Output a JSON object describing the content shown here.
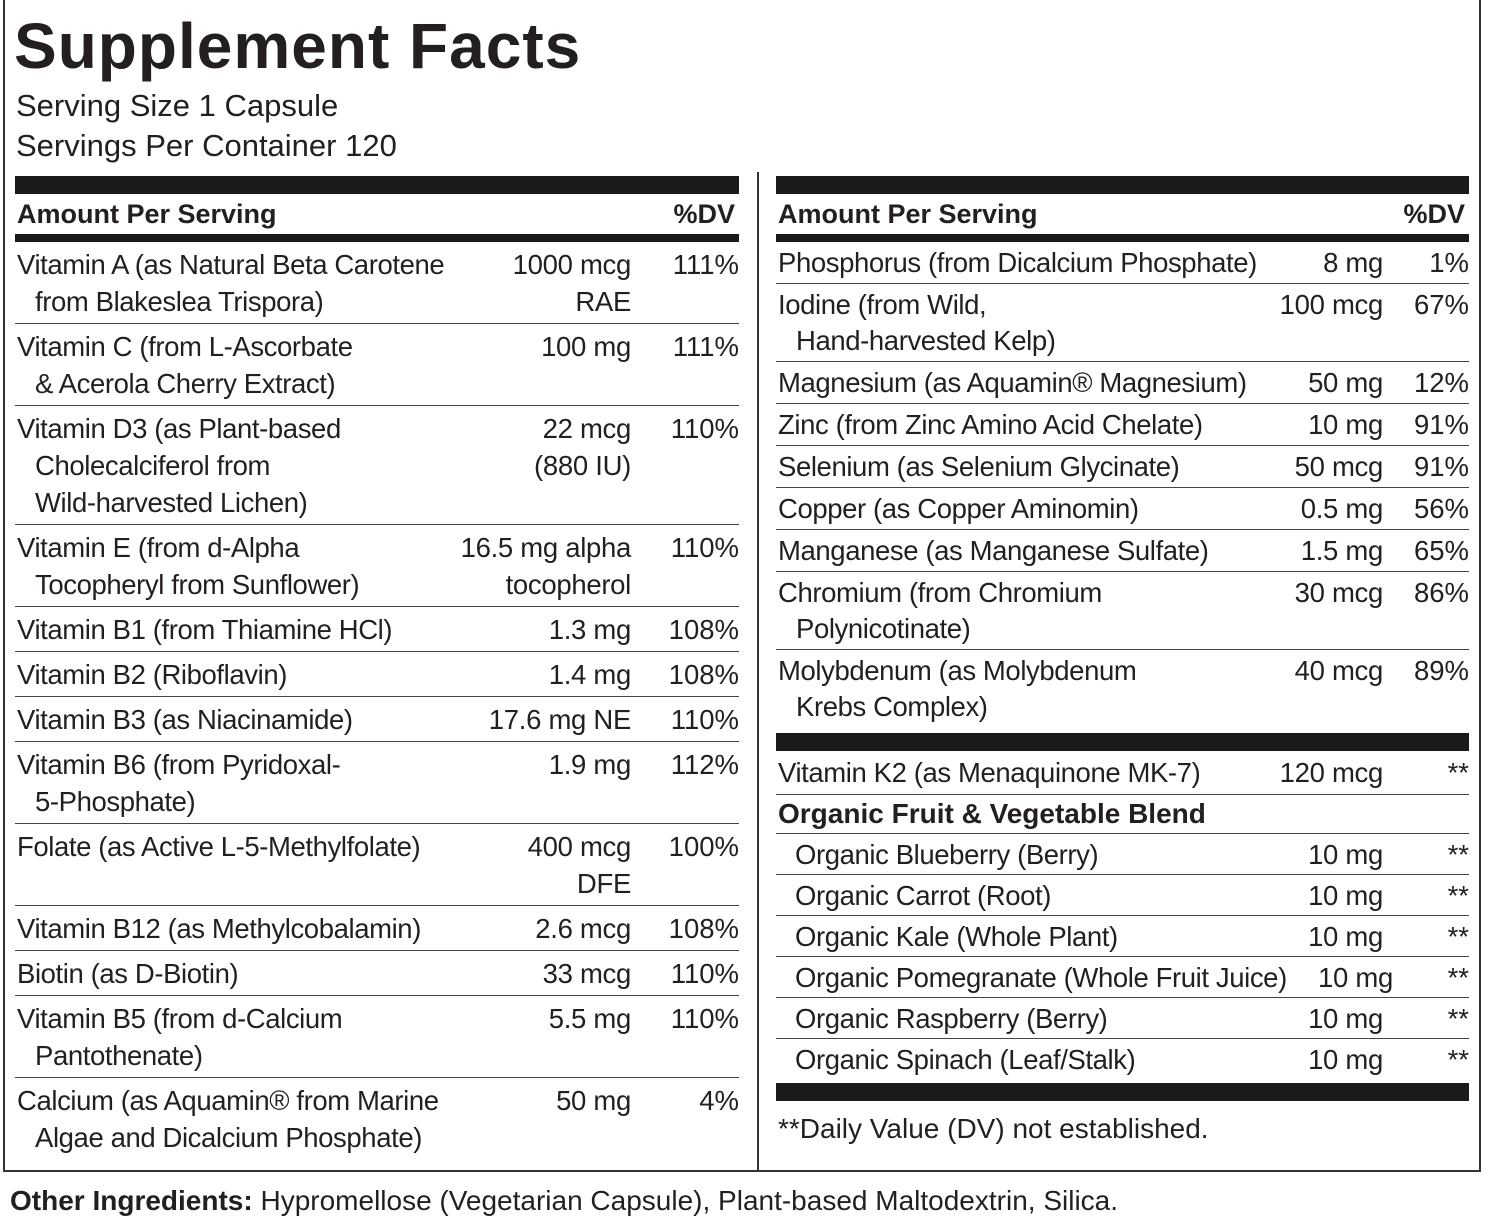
{
  "title": "Supplement Facts",
  "serving_info": [
    "Serving Size 1 Capsule",
    "Servings Per Container 120"
  ],
  "left_column": {
    "header": {
      "amount": "Amount Per Serving",
      "dv": "%DV"
    },
    "rows": [
      {
        "name": [
          "Vitamin A (as Natural Beta Carotene",
          "from Blakeslea Trispora)"
        ],
        "amount": [
          "1000 mcg",
          "RAE"
        ],
        "dv": "111%"
      },
      {
        "name": [
          "Vitamin C (from L-Ascorbate",
          "& Acerola Cherry Extract)"
        ],
        "amount": [
          "100 mg"
        ],
        "dv": "111%"
      },
      {
        "name": [
          "Vitamin D3 (as Plant-based",
          "Cholecalciferol from",
          "Wild-harvested Lichen)"
        ],
        "amount": [
          "22 mcg",
          "(880 IU)"
        ],
        "dv": "110%"
      },
      {
        "name": [
          "Vitamin E (from d-Alpha",
          "Tocopheryl from Sunflower)"
        ],
        "amount": [
          "16.5 mg alpha",
          "tocopherol"
        ],
        "dv": "110%"
      },
      {
        "name": [
          "Vitamin B1 (from Thiamine HCl)"
        ],
        "amount": [
          "1.3 mg"
        ],
        "dv": "108%"
      },
      {
        "name": [
          "Vitamin B2 (Riboflavin)"
        ],
        "amount": [
          "1.4 mg"
        ],
        "dv": "108%"
      },
      {
        "name": [
          "Vitamin B3 (as Niacinamide)"
        ],
        "amount": [
          "17.6 mg NE"
        ],
        "dv": "110%"
      },
      {
        "name": [
          "Vitamin B6 (from Pyridoxal-",
          "5-Phosphate)"
        ],
        "amount": [
          "1.9 mg"
        ],
        "dv": "112%"
      },
      {
        "name": [
          "Folate (as Active L-5-Methylfolate)"
        ],
        "amount": [
          "400 mcg",
          "DFE"
        ],
        "dv": "100%"
      },
      {
        "name": [
          "Vitamin B12 (as Methylcobalamin)"
        ],
        "amount": [
          "2.6 mcg"
        ],
        "dv": "108%"
      },
      {
        "name": [
          "Biotin (as D-Biotin)"
        ],
        "amount": [
          "33 mcg"
        ],
        "dv": "110%"
      },
      {
        "name": [
          "Vitamin B5 (from d-Calcium",
          "Pantothenate)"
        ],
        "amount": [
          "5.5 mg"
        ],
        "dv": "110%"
      },
      {
        "name": [
          "Calcium (as Aquamin® from Marine",
          "Algae and Dicalcium Phosphate)"
        ],
        "amount": [
          "50 mg"
        ],
        "dv": "4%"
      }
    ]
  },
  "right_column": {
    "header": {
      "amount": "Amount Per Serving",
      "dv": "%DV"
    },
    "rows": [
      {
        "name": [
          "Phosphorus (from Dicalcium Phosphate)"
        ],
        "amount": [
          "8 mg"
        ],
        "dv": "1%"
      },
      {
        "name": [
          "Iodine (from Wild,",
          "Hand-harvested Kelp)"
        ],
        "amount": [
          "100 mcg"
        ],
        "dv": "67%"
      },
      {
        "name": [
          "Magnesium (as Aquamin® Magnesium)"
        ],
        "amount": [
          "50 mg"
        ],
        "dv": "12%"
      },
      {
        "name": [
          "Zinc (from Zinc Amino Acid Chelate)"
        ],
        "amount": [
          "10 mg"
        ],
        "dv": "91%"
      },
      {
        "name": [
          "Selenium (as Selenium Glycinate)"
        ],
        "amount": [
          "50 mcg"
        ],
        "dv": "91%"
      },
      {
        "name": [
          "Copper (as Copper Aminomin)"
        ],
        "amount": [
          "0.5 mg"
        ],
        "dv": "56%"
      },
      {
        "name": [
          "Manganese (as Manganese Sulfate)"
        ],
        "amount": [
          "1.5 mg"
        ],
        "dv": "65%"
      },
      {
        "name": [
          "Chromium (from Chromium",
          "Polynicotinate)"
        ],
        "amount": [
          "30 mcg"
        ],
        "dv": "86%"
      },
      {
        "name": [
          "Molybdenum (as Molybdenum",
          "Krebs Complex)"
        ],
        "amount": [
          "40 mcg"
        ],
        "dv": "89%"
      }
    ],
    "vitamin_k2": {
      "name": [
        "Vitamin K2 (as Menaquinone MK-7)"
      ],
      "amount": [
        "120 mcg"
      ],
      "dv": "**"
    },
    "blend": {
      "title": "Organic Fruit & Vegetable Blend",
      "rows": [
        {
          "name": [
            "Organic Blueberry (Berry)"
          ],
          "amount": [
            "10 mg"
          ],
          "dv": "**"
        },
        {
          "name": [
            "Organic Carrot (Root)"
          ],
          "amount": [
            "10 mg"
          ],
          "dv": "**"
        },
        {
          "name": [
            "Organic Kale (Whole Plant)"
          ],
          "amount": [
            "10 mg"
          ],
          "dv": "**"
        },
        {
          "name": [
            "Organic Pomegranate (Whole Fruit Juice)"
          ],
          "amount": [
            "10 mg"
          ],
          "dv": "**"
        },
        {
          "name": [
            "Organic Raspberry (Berry)"
          ],
          "amount": [
            "10 mg"
          ],
          "dv": "**"
        },
        {
          "name": [
            "Organic  Spinach (Leaf/Stalk)"
          ],
          "amount": [
            "10 mg"
          ],
          "dv": "**"
        }
      ]
    },
    "footnote": "**Daily Value (DV) not established."
  },
  "other_ingredients": {
    "label": "Other Ingredients:",
    "text": "Hypromellose (Vegetarian Capsule), Plant-based Maltodextrin, Silica."
  }
}
